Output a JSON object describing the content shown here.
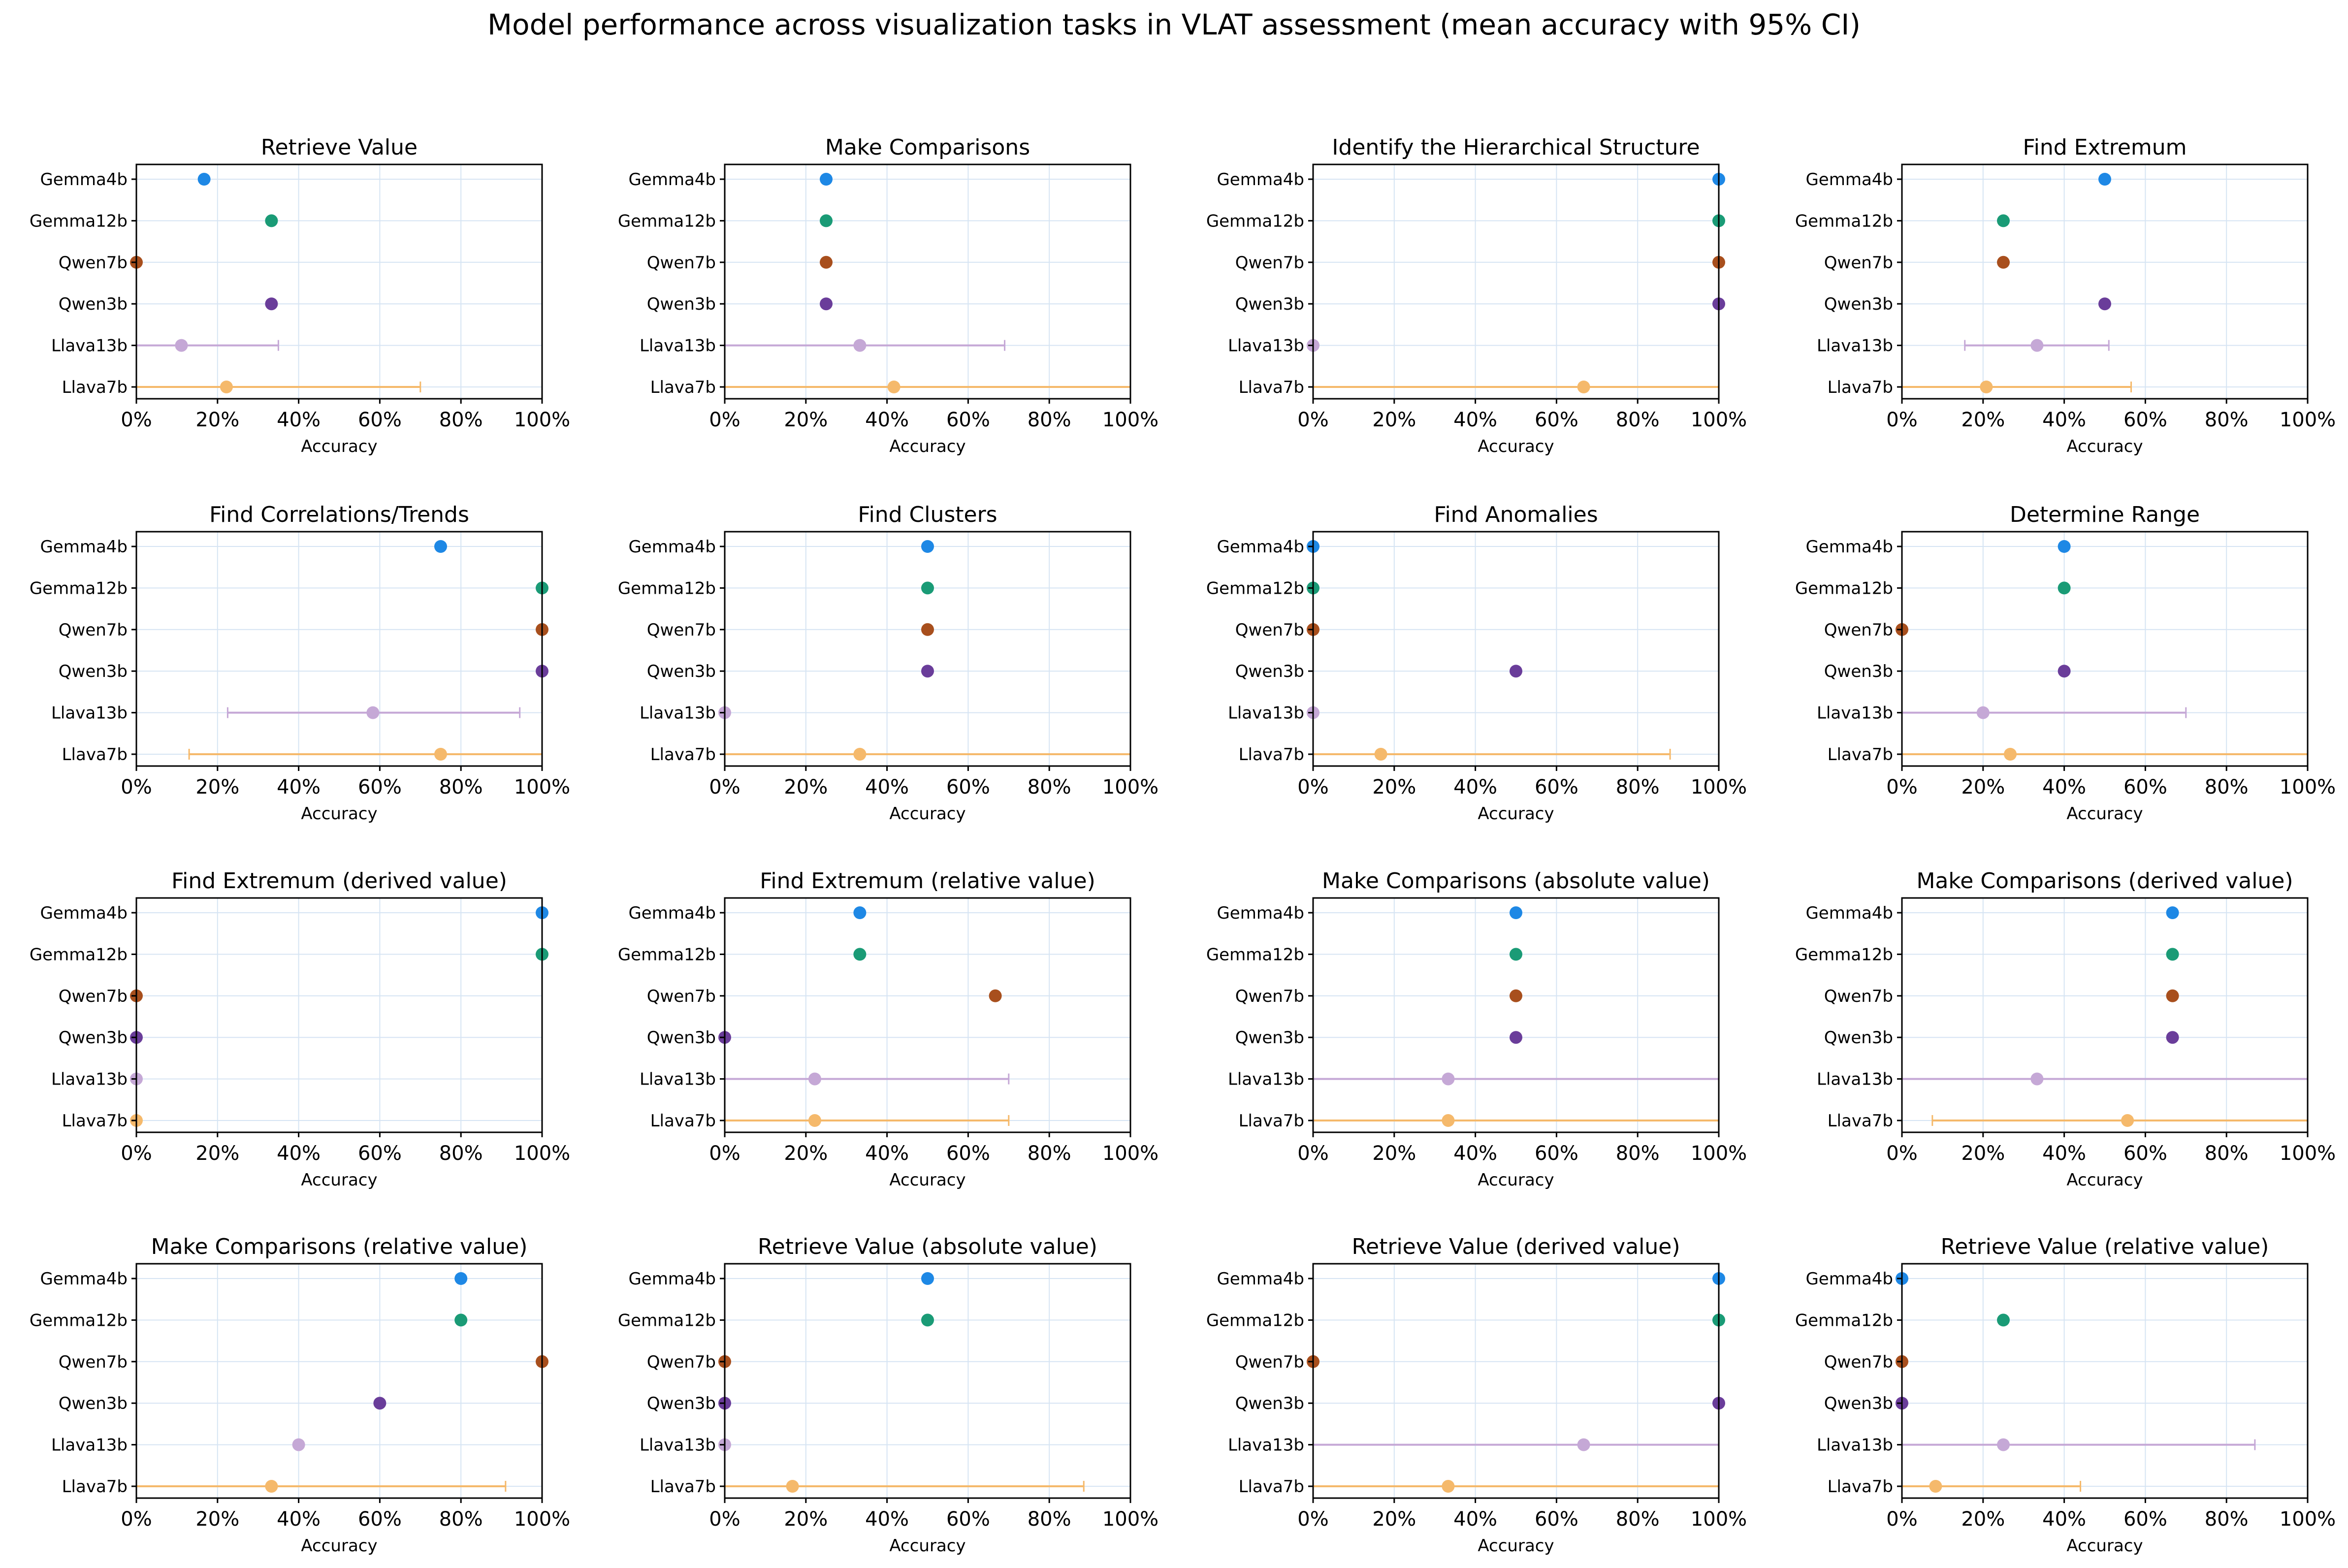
{
  "figure": {
    "title": "Model performance across visualization tasks in VLAT assessment (mean accuracy with 95% CI)"
  },
  "models": [
    "Gemma4b",
    "Gemma12b",
    "Qwen7b",
    "Qwen3b",
    "Llava13b",
    "Llava7b"
  ],
  "colors": {
    "Gemma4b": "#1e88e5",
    "Gemma12b": "#1a9b76",
    "Qwen7b": "#a84f1d",
    "Qwen3b": "#6a3d9a",
    "Llava13b": "#c5a8d6",
    "Llava7b": "#f5b96b",
    "grid": "#d6e4f3"
  },
  "chart_data": [
    {
      "type": "scatter",
      "title": "Retrieve Value",
      "xlabel": "Accuracy",
      "xlim": [
        0,
        100
      ],
      "grid": true,
      "x_ticks": [
        "0%",
        "20%",
        "40%",
        "60%",
        "80%",
        "100%"
      ],
      "categories": [
        "Gemma4b",
        "Gemma12b",
        "Qwen7b",
        "Qwen3b",
        "Llava13b",
        "Llava7b"
      ],
      "values": [
        16.7,
        33.3,
        0,
        33.3,
        11.1,
        22.2
      ],
      "ci": [
        null,
        null,
        null,
        null,
        [
          0,
          35
        ],
        [
          0,
          70
        ]
      ]
    },
    {
      "type": "scatter",
      "title": "Make Comparisons",
      "xlabel": "Accuracy",
      "xlim": [
        0,
        100
      ],
      "grid": true,
      "x_ticks": [
        "0%",
        "20%",
        "40%",
        "60%",
        "80%",
        "100%"
      ],
      "categories": [
        "Gemma4b",
        "Gemma12b",
        "Qwen7b",
        "Qwen3b",
        "Llava13b",
        "Llava7b"
      ],
      "values": [
        25,
        25,
        25,
        25,
        33.3,
        41.7
      ],
      "ci": [
        null,
        null,
        null,
        null,
        [
          0,
          69
        ],
        [
          0,
          100
        ]
      ]
    },
    {
      "type": "scatter",
      "title": "Identify the Hierarchical Structure",
      "xlabel": "Accuracy",
      "xlim": [
        0,
        100
      ],
      "grid": true,
      "x_ticks": [
        "0%",
        "20%",
        "40%",
        "60%",
        "80%",
        "100%"
      ],
      "categories": [
        "Gemma4b",
        "Gemma12b",
        "Qwen7b",
        "Qwen3b",
        "Llava13b",
        "Llava7b"
      ],
      "values": [
        100,
        100,
        100,
        100,
        0,
        66.7
      ],
      "ci": [
        null,
        null,
        null,
        null,
        null,
        [
          0,
          100
        ]
      ]
    },
    {
      "type": "scatter",
      "title": "Find Extremum",
      "xlabel": "Accuracy",
      "xlim": [
        0,
        100
      ],
      "grid": true,
      "x_ticks": [
        "0%",
        "20%",
        "40%",
        "60%",
        "80%",
        "100%"
      ],
      "categories": [
        "Gemma4b",
        "Gemma12b",
        "Qwen7b",
        "Qwen3b",
        "Llava13b",
        "Llava7b"
      ],
      "values": [
        50,
        25,
        25,
        50,
        33.3,
        20.8
      ],
      "ci": [
        null,
        null,
        null,
        null,
        [
          15.5,
          51
        ],
        [
          0,
          56.5
        ]
      ]
    },
    {
      "type": "scatter",
      "title": "Find Correlations/Trends",
      "xlabel": "Accuracy",
      "xlim": [
        0,
        100
      ],
      "grid": true,
      "x_ticks": [
        "0%",
        "20%",
        "40%",
        "60%",
        "80%",
        "100%"
      ],
      "categories": [
        "Gemma4b",
        "Gemma12b",
        "Qwen7b",
        "Qwen3b",
        "Llava13b",
        "Llava7b"
      ],
      "values": [
        75,
        100,
        100,
        100,
        58.3,
        75
      ],
      "ci": [
        null,
        null,
        null,
        null,
        [
          22.5,
          94.5
        ],
        [
          13,
          100
        ]
      ]
    },
    {
      "type": "scatter",
      "title": "Find Clusters",
      "xlabel": "Accuracy",
      "xlim": [
        0,
        100
      ],
      "grid": true,
      "x_ticks": [
        "0%",
        "20%",
        "40%",
        "60%",
        "80%",
        "100%"
      ],
      "categories": [
        "Gemma4b",
        "Gemma12b",
        "Qwen7b",
        "Qwen3b",
        "Llava13b",
        "Llava7b"
      ],
      "values": [
        50,
        50,
        50,
        50,
        0,
        33.3
      ],
      "ci": [
        null,
        null,
        null,
        null,
        null,
        [
          0,
          100
        ]
      ]
    },
    {
      "type": "scatter",
      "title": "Find Anomalies",
      "xlabel": "Accuracy",
      "xlim": [
        0,
        100
      ],
      "grid": true,
      "x_ticks": [
        "0%",
        "20%",
        "40%",
        "60%",
        "80%",
        "100%"
      ],
      "categories": [
        "Gemma4b",
        "Gemma12b",
        "Qwen7b",
        "Qwen3b",
        "Llava13b",
        "Llava7b"
      ],
      "values": [
        0,
        0,
        0,
        50,
        0,
        16.7
      ],
      "ci": [
        null,
        null,
        null,
        null,
        null,
        [
          0,
          88
        ]
      ]
    },
    {
      "type": "scatter",
      "title": "Determine Range",
      "xlabel": "Accuracy",
      "xlim": [
        0,
        100
      ],
      "grid": true,
      "x_ticks": [
        "0%",
        "20%",
        "40%",
        "60%",
        "80%",
        "100%"
      ],
      "categories": [
        "Gemma4b",
        "Gemma12b",
        "Qwen7b",
        "Qwen3b",
        "Llava13b",
        "Llava7b"
      ],
      "values": [
        40,
        40,
        0,
        40,
        20,
        26.7
      ],
      "ci": [
        null,
        null,
        null,
        null,
        [
          0,
          70
        ],
        [
          0,
          100
        ]
      ]
    },
    {
      "type": "scatter",
      "title": "Find Extremum (derived value)",
      "xlabel": "Accuracy",
      "xlim": [
        0,
        100
      ],
      "grid": true,
      "x_ticks": [
        "0%",
        "20%",
        "40%",
        "60%",
        "80%",
        "100%"
      ],
      "categories": [
        "Gemma4b",
        "Gemma12b",
        "Qwen7b",
        "Qwen3b",
        "Llava13b",
        "Llava7b"
      ],
      "values": [
        100,
        100,
        0,
        0,
        0,
        0
      ],
      "ci": [
        null,
        null,
        null,
        null,
        null,
        null
      ]
    },
    {
      "type": "scatter",
      "title": "Find Extremum (relative value)",
      "xlabel": "Accuracy",
      "xlim": [
        0,
        100
      ],
      "grid": true,
      "x_ticks": [
        "0%",
        "20%",
        "40%",
        "60%",
        "80%",
        "100%"
      ],
      "categories": [
        "Gemma4b",
        "Gemma12b",
        "Qwen7b",
        "Qwen3b",
        "Llava13b",
        "Llava7b"
      ],
      "values": [
        33.3,
        33.3,
        66.7,
        0,
        22.2,
        22.2
      ],
      "ci": [
        null,
        null,
        null,
        null,
        [
          0,
          70
        ],
        [
          0,
          70
        ]
      ]
    },
    {
      "type": "scatter",
      "title": "Make Comparisons (absolute value)",
      "xlabel": "Accuracy",
      "xlim": [
        0,
        100
      ],
      "grid": true,
      "x_ticks": [
        "0%",
        "20%",
        "40%",
        "60%",
        "80%",
        "100%"
      ],
      "categories": [
        "Gemma4b",
        "Gemma12b",
        "Qwen7b",
        "Qwen3b",
        "Llava13b",
        "Llava7b"
      ],
      "values": [
        50,
        50,
        50,
        50,
        33.3,
        33.3
      ],
      "ci": [
        null,
        null,
        null,
        null,
        [
          0,
          100
        ],
        [
          0,
          100
        ]
      ]
    },
    {
      "type": "scatter",
      "title": "Make Comparisons (derived value)",
      "xlabel": "Accuracy",
      "xlim": [
        0,
        100
      ],
      "grid": true,
      "x_ticks": [
        "0%",
        "20%",
        "40%",
        "60%",
        "80%",
        "100%"
      ],
      "categories": [
        "Gemma4b",
        "Gemma12b",
        "Qwen7b",
        "Qwen3b",
        "Llava13b",
        "Llava7b"
      ],
      "values": [
        66.7,
        66.7,
        66.7,
        66.7,
        33.3,
        55.6
      ],
      "ci": [
        null,
        null,
        null,
        null,
        [
          0,
          100
        ],
        [
          7.5,
          100
        ]
      ]
    },
    {
      "type": "scatter",
      "title": "Make Comparisons (relative value)",
      "xlabel": "Accuracy",
      "xlim": [
        0,
        100
      ],
      "grid": true,
      "x_ticks": [
        "0%",
        "20%",
        "40%",
        "60%",
        "80%",
        "100%"
      ],
      "categories": [
        "Gemma4b",
        "Gemma12b",
        "Qwen7b",
        "Qwen3b",
        "Llava13b",
        "Llava7b"
      ],
      "values": [
        80,
        80,
        100,
        60,
        40,
        33.3
      ],
      "ci": [
        null,
        null,
        null,
        null,
        null,
        [
          0,
          91
        ]
      ]
    },
    {
      "type": "scatter",
      "title": "Retrieve Value (absolute value)",
      "xlabel": "Accuracy",
      "xlim": [
        0,
        100
      ],
      "grid": true,
      "x_ticks": [
        "0%",
        "20%",
        "40%",
        "60%",
        "80%",
        "100%"
      ],
      "categories": [
        "Gemma4b",
        "Gemma12b",
        "Qwen7b",
        "Qwen3b",
        "Llava13b",
        "Llava7b"
      ],
      "values": [
        50,
        50,
        0,
        0,
        0,
        16.7
      ],
      "ci": [
        null,
        null,
        null,
        null,
        null,
        [
          0,
          88.5
        ]
      ]
    },
    {
      "type": "scatter",
      "title": "Retrieve Value (derived value)",
      "xlabel": "Accuracy",
      "xlim": [
        0,
        100
      ],
      "grid": true,
      "x_ticks": [
        "0%",
        "20%",
        "40%",
        "60%",
        "80%",
        "100%"
      ],
      "categories": [
        "Gemma4b",
        "Gemma12b",
        "Qwen7b",
        "Qwen3b",
        "Llava13b",
        "Llava7b"
      ],
      "values": [
        100,
        100,
        0,
        100,
        66.7,
        33.3
      ],
      "ci": [
        null,
        null,
        null,
        null,
        [
          0,
          100
        ],
        [
          0,
          100
        ]
      ]
    },
    {
      "type": "scatter",
      "title": "Retrieve Value (relative value)",
      "xlabel": "Accuracy",
      "xlim": [
        0,
        100
      ],
      "grid": true,
      "x_ticks": [
        "0%",
        "20%",
        "40%",
        "60%",
        "80%",
        "100%"
      ],
      "categories": [
        "Gemma4b",
        "Gemma12b",
        "Qwen7b",
        "Qwen3b",
        "Llava13b",
        "Llava7b"
      ],
      "values": [
        0,
        25,
        0,
        0,
        25,
        8.3
      ],
      "ci": [
        null,
        null,
        null,
        null,
        [
          0,
          87
        ],
        [
          0,
          44
        ]
      ]
    }
  ]
}
